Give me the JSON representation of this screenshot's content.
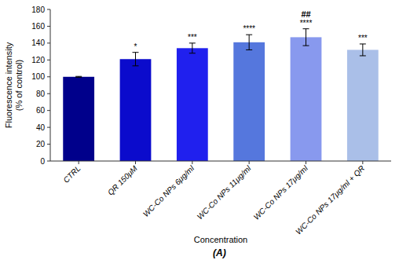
{
  "chart_data": {
    "type": "bar",
    "subtitle": "(A)",
    "xlabel": "Concentration",
    "ylabel": "Fluorescence intensity\n(% of control)",
    "categories": [
      "CTRL",
      "QR 150μM",
      "WC-Co NPs 6μg/ml",
      "WC-Co NPs 11μg/ml",
      "WC-Co NPs 17μg/ml",
      "WC-Co NPs 17μg/ml + QR"
    ],
    "values": [
      100,
      121,
      134,
      141,
      147,
      132
    ],
    "errors": [
      0.5,
      8,
      6,
      9,
      10,
      7
    ],
    "colors": [
      "#00008B",
      "#0B0BCC",
      "#2020EE",
      "#5577DD",
      "#8899EE",
      "#AABFE8"
    ],
    "significance": [
      null,
      "*",
      "***",
      "****",
      "****",
      "***"
    ],
    "hash_labels": [
      null,
      null,
      null,
      null,
      "##",
      null
    ],
    "ylim": [
      0,
      180
    ],
    "yticks": [
      0,
      20,
      40,
      60,
      80,
      100,
      120,
      140,
      160,
      180
    ],
    "grid": false
  }
}
